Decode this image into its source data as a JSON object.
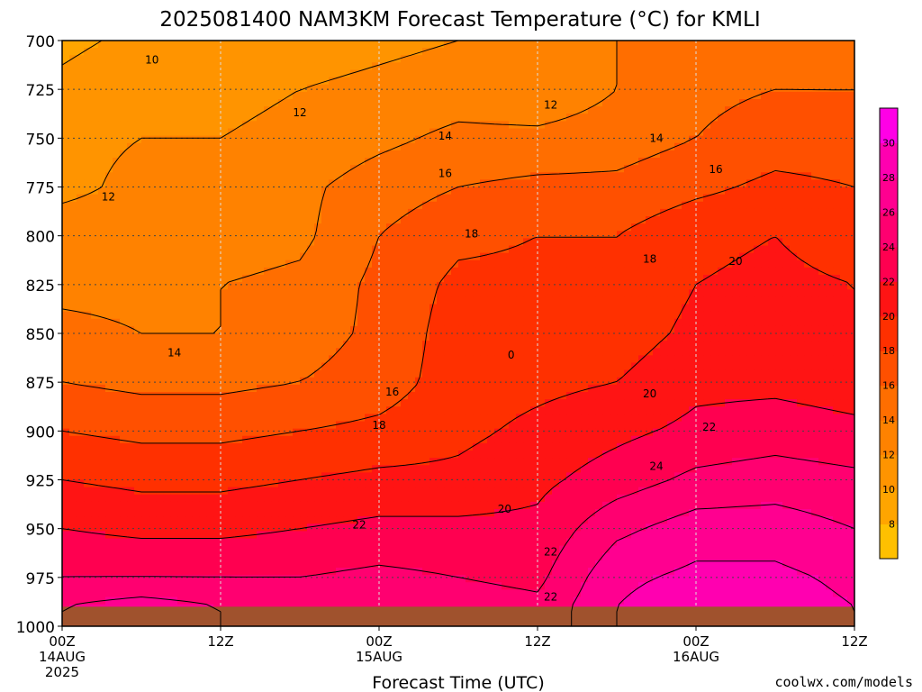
{
  "title": "2025081400 NAM3KM Forecast Temperature (°C) for KMLI",
  "credit": "coolwx.com/models",
  "colors": {
    "ground": "#a0522d",
    "frame": "#000000",
    "grid": "#444444",
    "credit": "#d42a2a"
  },
  "chart_data": {
    "type": "heatmap",
    "title": "2025081400 NAM3KM Forecast Temperature (°C) for KMLI",
    "xlabel": "Forecast Time (UTC)",
    "ylabel": "",
    "x_range_hours": [
      0,
      60
    ],
    "y_range_hpa": [
      700,
      1000
    ],
    "y_axis_inverted": true,
    "grid": true,
    "x_ticks": [
      {
        "hour": 0,
        "lines": [
          "00Z",
          "14AUG",
          "2025"
        ]
      },
      {
        "hour": 12,
        "lines": [
          "12Z"
        ]
      },
      {
        "hour": 24,
        "lines": [
          "00Z",
          "15AUG"
        ]
      },
      {
        "hour": 36,
        "lines": [
          "12Z"
        ]
      },
      {
        "hour": 48,
        "lines": [
          "00Z",
          "16AUG"
        ]
      },
      {
        "hour": 60,
        "lines": [
          "12Z"
        ]
      }
    ],
    "y_ticks": [
      700,
      725,
      750,
      775,
      800,
      825,
      850,
      875,
      900,
      925,
      950,
      975,
      1000
    ],
    "colorbar": {
      "placement": "right",
      "levels": [
        6,
        8,
        10,
        12,
        14,
        16,
        18,
        20,
        22,
        24,
        26,
        28,
        30,
        32
      ],
      "labels": [
        8,
        10,
        12,
        14,
        16,
        18,
        20,
        22,
        24,
        26,
        28,
        30
      ],
      "colors": [
        "#ffc000",
        "#ffa500",
        "#ff9400",
        "#ff8200",
        "#ff6e00",
        "#ff5000",
        "#ff3000",
        "#ff1414",
        "#ff0050",
        "#ff0070",
        "#ff0090",
        "#ff00b0",
        "#ff00e6"
      ]
    },
    "surface_pressure_hpa": 990,
    "grid_hours": [
      0,
      6,
      12,
      18,
      24,
      30,
      36,
      42,
      48,
      54,
      60
    ],
    "grid_pressures_hpa": [
      700,
      725,
      750,
      775,
      800,
      825,
      850,
      875,
      900,
      925,
      950,
      975,
      990
    ],
    "temperature_c": [
      [
        9.5,
        10.5,
        10.5,
        11,
        11.5,
        12,
        12.5,
        14,
        15,
        15,
        14.5
      ],
      [
        10.5,
        11.5,
        11.5,
        12,
        12.5,
        13,
        12.5,
        14,
        15.5,
        16,
        16
      ],
      [
        11.5,
        12,
        12,
        12.5,
        13.5,
        14.5,
        14.5,
        15,
        16,
        17,
        17
      ],
      [
        11.5,
        12.5,
        12.5,
        13.5,
        15,
        16,
        16.5,
        16.5,
        17.5,
        18.5,
        18
      ],
      [
        13,
        13,
        13,
        13.5,
        16,
        17.5,
        18,
        18,
        19.5,
        20,
        19
      ],
      [
        13.5,
        13.5,
        14,
        14.5,
        16.5,
        18.5,
        18.5,
        18.5,
        20,
        20.5,
        20
      ],
      [
        14.5,
        14,
        14,
        15,
        16.5,
        19,
        18.5,
        19,
        20.5,
        21,
        20
      ],
      [
        16,
        15.5,
        15.5,
        16,
        17,
        19,
        19.5,
        20,
        21.5,
        21.5,
        21
      ],
      [
        18,
        17.5,
        17.5,
        18,
        18.5,
        19.5,
        20.5,
        21.5,
        22.5,
        23,
        22.5
      ],
      [
        20,
        19.5,
        19.5,
        20,
        20.5,
        20.5,
        21.5,
        23,
        24.5,
        25,
        24.5
      ],
      [
        22,
        21.5,
        21.5,
        22,
        22.5,
        22.5,
        22.5,
        25.5,
        27,
        27,
        26
      ],
      [
        24,
        24,
        24,
        24,
        24.5,
        24,
        23.5,
        27.5,
        28.5,
        28.5,
        27.5
      ],
      [
        26,
        27,
        26,
        25.5,
        25.5,
        25,
        24.5,
        28,
        29.5,
        29,
        28
      ]
    ],
    "contour_labels": [
      {
        "text": "10",
        "hour": 6.8,
        "p": 710
      },
      {
        "text": "12",
        "hour": 3.5,
        "p": 780
      },
      {
        "text": "12",
        "hour": 18,
        "p": 737
      },
      {
        "text": "12",
        "hour": 37,
        "p": 733
      },
      {
        "text": "14",
        "hour": 8.5,
        "p": 860
      },
      {
        "text": "14",
        "hour": 29,
        "p": 749
      },
      {
        "text": "14",
        "hour": 45,
        "p": 750
      },
      {
        "text": "16",
        "hour": 29,
        "p": 768
      },
      {
        "text": "16",
        "hour": 49.5,
        "p": 766
      },
      {
        "text": "16",
        "hour": 25,
        "p": 880
      },
      {
        "text": "18",
        "hour": 31,
        "p": 799
      },
      {
        "text": "18",
        "hour": 44.5,
        "p": 812
      },
      {
        "text": "18",
        "hour": 24,
        "p": 897
      },
      {
        "text": "20",
        "hour": 51,
        "p": 813
      },
      {
        "text": "20",
        "hour": 44.5,
        "p": 881
      },
      {
        "text": "20",
        "hour": 33.5,
        "p": 940
      },
      {
        "text": "22",
        "hour": 49,
        "p": 898
      },
      {
        "text": "22",
        "hour": 22.5,
        "p": 948
      },
      {
        "text": "22",
        "hour": 37,
        "p": 962
      },
      {
        "text": "22",
        "hour": 37,
        "p": 985
      },
      {
        "text": "24",
        "hour": 45,
        "p": 918
      },
      {
        "text": "0",
        "hour": 34,
        "p": 861
      }
    ]
  }
}
